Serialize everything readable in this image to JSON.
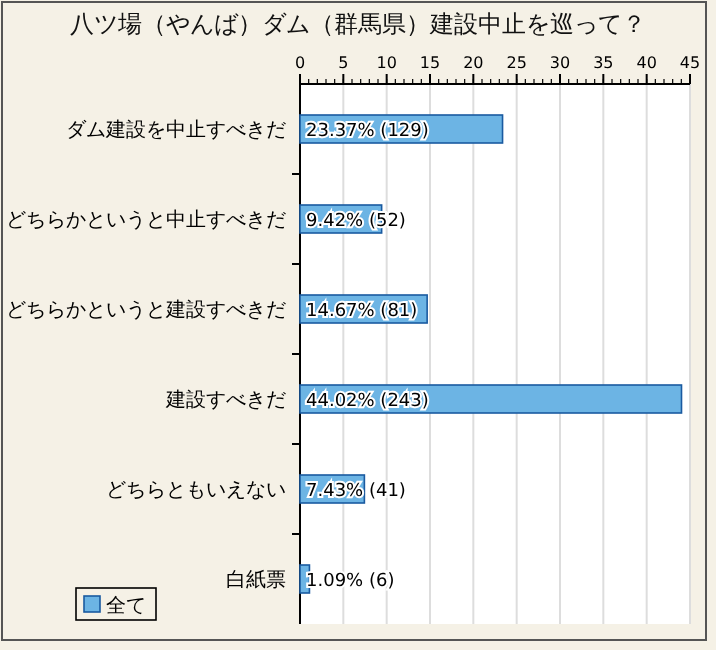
{
  "chart_data": {
    "type": "bar",
    "orientation": "horizontal",
    "title": "八ツ場（やんば）ダム（群馬県）建設中止を巡って？",
    "categories": [
      "ダム建設を中止すべきだ",
      "どちらかというと中止すべきだ",
      "どちらかというと建設すべきだ",
      "建設すべきだ",
      "どちらともいえない",
      "白紙票"
    ],
    "series": [
      {
        "name": "全て",
        "color": "#6cb4e4",
        "values": [
          23.37,
          9.42,
          14.67,
          44.02,
          7.43,
          1.09
        ],
        "value_labels": [
          "23.37% (129)",
          "9.42% (52)",
          "14.67% (81)",
          "44.02% (243)",
          "7.43% (41)",
          "1.09% (6)"
        ]
      }
    ],
    "xlim": [
      0,
      45
    ],
    "xticks": [
      0,
      5,
      10,
      15,
      20,
      25,
      30,
      35,
      40,
      45
    ],
    "grid": "x",
    "legend": "bottom left"
  }
}
